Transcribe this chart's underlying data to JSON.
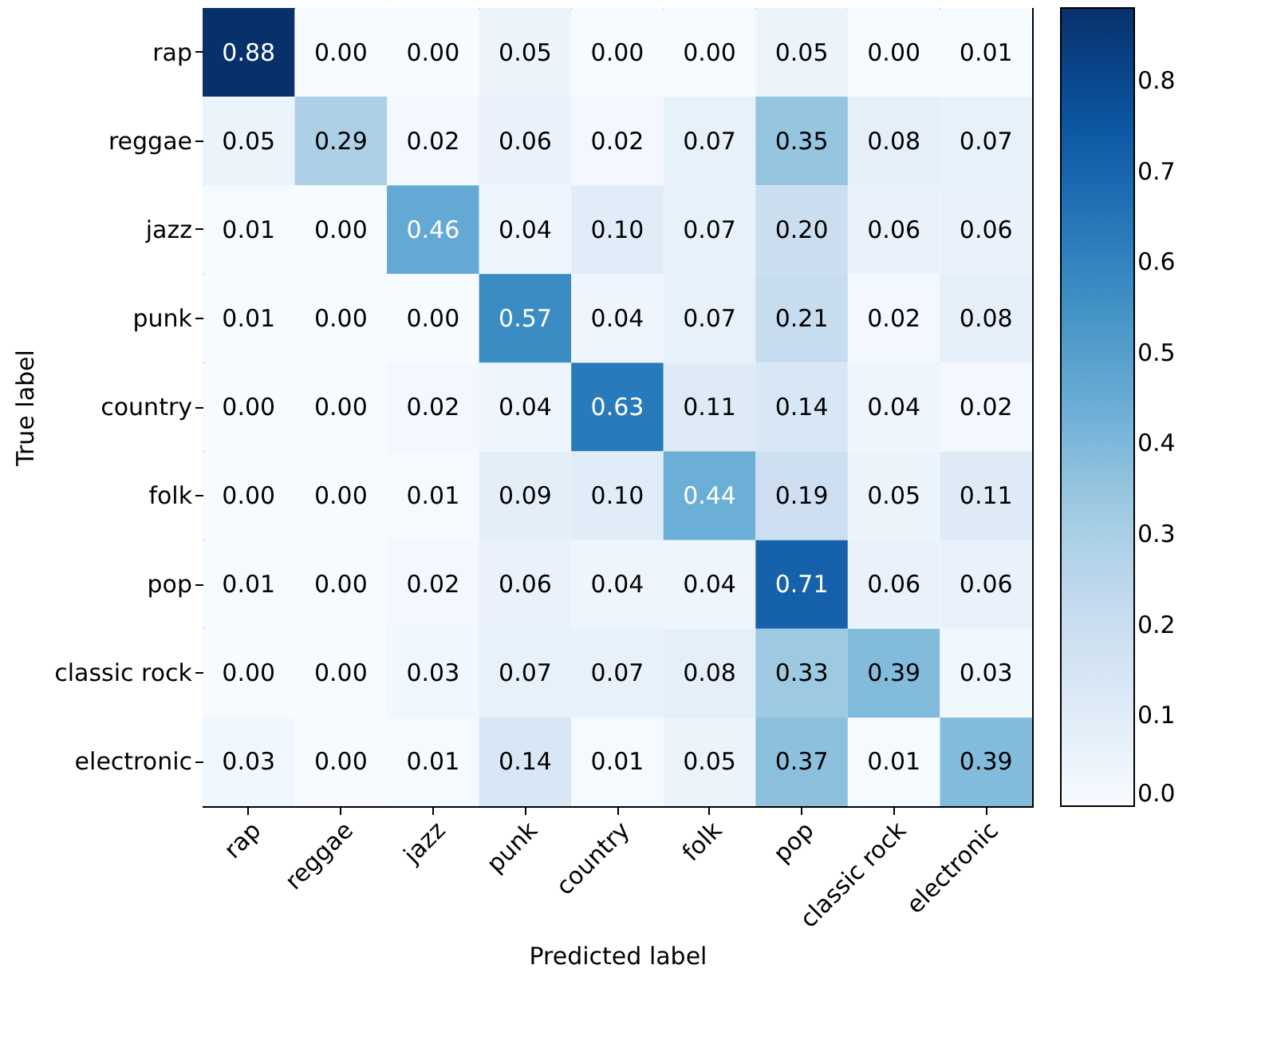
{
  "chart_data": {
    "type": "heatmap",
    "xlabel": "Predicted label",
    "ylabel": "True label",
    "categories": [
      "rap",
      "reggae",
      "jazz",
      "punk",
      "country",
      "folk",
      "pop",
      "classic rock",
      "electronic"
    ],
    "y_categories": [
      "rap",
      "reggae",
      "jazz",
      "punk",
      "country",
      "folk",
      "pop",
      "classic rock",
      "electronic"
    ],
    "cells": [
      [
        0.88,
        0.0,
        0.0,
        0.05,
        0.0,
        0.0,
        0.05,
        0.0,
        0.01
      ],
      [
        0.05,
        0.29,
        0.02,
        0.06,
        0.02,
        0.07,
        0.35,
        0.08,
        0.07
      ],
      [
        0.01,
        0.0,
        0.46,
        0.04,
        0.1,
        0.07,
        0.2,
        0.06,
        0.06
      ],
      [
        0.01,
        0.0,
        0.0,
        0.57,
        0.04,
        0.07,
        0.21,
        0.02,
        0.08
      ],
      [
        0.0,
        0.0,
        0.02,
        0.04,
        0.63,
        0.11,
        0.14,
        0.04,
        0.02
      ],
      [
        0.0,
        0.0,
        0.01,
        0.09,
        0.1,
        0.44,
        0.19,
        0.05,
        0.11
      ],
      [
        0.01,
        0.0,
        0.02,
        0.06,
        0.04,
        0.04,
        0.71,
        0.06,
        0.06
      ],
      [
        0.0,
        0.0,
        0.03,
        0.07,
        0.07,
        0.08,
        0.33,
        0.39,
        0.03
      ],
      [
        0.03,
        0.0,
        0.01,
        0.14,
        0.01,
        0.05,
        0.37,
        0.01,
        0.39
      ]
    ],
    "cell_labels": [
      [
        "0.88",
        "0.00",
        "0.00",
        "0.05",
        "0.00",
        "0.00",
        "0.05",
        "0.00",
        "0.01"
      ],
      [
        "0.05",
        "0.29",
        "0.02",
        "0.06",
        "0.02",
        "0.07",
        "0.35",
        "0.08",
        "0.07"
      ],
      [
        "0.01",
        "0.00",
        "0.46",
        "0.04",
        "0.10",
        "0.07",
        "0.20",
        "0.06",
        "0.06"
      ],
      [
        "0.01",
        "0.00",
        "0.00",
        "0.57",
        "0.04",
        "0.07",
        "0.21",
        "0.02",
        "0.08"
      ],
      [
        "0.00",
        "0.00",
        "0.02",
        "0.04",
        "0.63",
        "0.11",
        "0.14",
        "0.04",
        "0.02"
      ],
      [
        "0.00",
        "0.00",
        "0.01",
        "0.09",
        "0.10",
        "0.44",
        "0.19",
        "0.05",
        "0.11"
      ],
      [
        "0.01",
        "0.00",
        "0.02",
        "0.06",
        "0.04",
        "0.04",
        "0.71",
        "0.06",
        "0.06"
      ],
      [
        "0.00",
        "0.00",
        "0.03",
        "0.07",
        "0.07",
        "0.08",
        "0.33",
        "0.39",
        "0.03"
      ],
      [
        "0.03",
        "0.00",
        "0.01",
        "0.14",
        "0.01",
        "0.05",
        "0.37",
        "0.01",
        "0.39"
      ]
    ],
    "clim": [
      0,
      0.88
    ],
    "cticks": [
      {
        "value": 0,
        "label": "0.0"
      },
      {
        "value": 0.1,
        "label": "0.1"
      },
      {
        "value": 0.2,
        "label": "0.2"
      },
      {
        "value": 0.3,
        "label": "0.3"
      },
      {
        "value": 0.4,
        "label": "0.4"
      },
      {
        "value": 0.5,
        "label": "0.5"
      },
      {
        "value": 0.6,
        "label": "0.6"
      },
      {
        "value": 0.7,
        "label": "0.7"
      },
      {
        "value": 0.8,
        "label": "0.8"
      }
    ]
  }
}
